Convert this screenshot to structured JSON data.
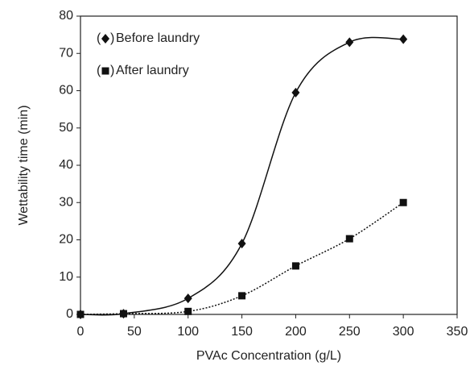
{
  "chart_data": {
    "type": "scatter",
    "x_label": "PVAc Concentration (g/L)",
    "y_label": "Wettability time (min)",
    "xlim": [
      0,
      350
    ],
    "xticks": [
      0,
      50,
      100,
      150,
      200,
      250,
      300,
      350
    ],
    "ylim": [
      0,
      80
    ],
    "yticks": [
      0,
      10,
      20,
      30,
      40,
      50,
      60,
      70,
      80
    ],
    "grid": false,
    "legend": "upper left",
    "series": [
      {
        "name": "Before laundry",
        "color": "#111111",
        "marker": "diamond",
        "line": "solid",
        "x": [
          0,
          40,
          100,
          150,
          200,
          250,
          300
        ],
        "values": [
          0,
          0.2,
          4.3,
          19,
          59.5,
          73,
          73.8
        ]
      },
      {
        "name": "After laundry",
        "color": "#111111",
        "marker": "square",
        "line": "dotted",
        "x": [
          0,
          40,
          100,
          150,
          200,
          250,
          300
        ],
        "values": [
          0,
          0.2,
          0.8,
          5,
          13,
          20.3,
          30
        ]
      }
    ]
  }
}
